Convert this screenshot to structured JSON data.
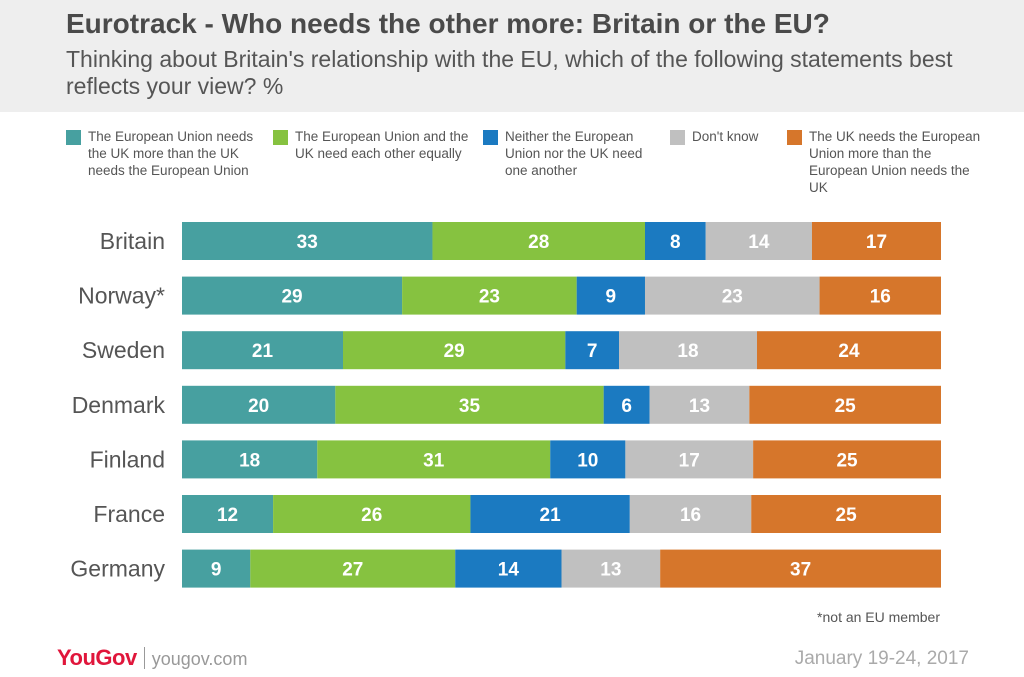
{
  "header": {
    "title": "Eurotrack - Who needs the other more: Britain or the EU?",
    "subtitle": "Thinking about Britain's relationship with the EU, which of the following statements best reflects your view? %"
  },
  "colors": {
    "series": [
      "#47a0a0",
      "#86c240",
      "#1b7ac1",
      "#c0c0c0",
      "#d6762b"
    ],
    "header_bg": "#eeeeee",
    "brand": "#e0163b"
  },
  "chart_data": {
    "type": "bar",
    "orientation": "horizontal",
    "stacked": true,
    "categories": [
      "Britain",
      "Norway*",
      "Sweden",
      "Denmark",
      "Finland",
      "France",
      "Germany"
    ],
    "series": [
      {
        "name": "The European Union needs the UK more than the UK needs the European Union",
        "values": [
          33,
          29,
          21,
          20,
          18,
          12,
          9
        ]
      },
      {
        "name": "The European Union and the UK need each other equally",
        "values": [
          28,
          23,
          29,
          35,
          31,
          26,
          27
        ]
      },
      {
        "name": "Neither the European Union nor the UK need one another",
        "values": [
          8,
          9,
          7,
          6,
          10,
          21,
          14
        ]
      },
      {
        "name": "Don't know",
        "values": [
          14,
          23,
          18,
          13,
          17,
          16,
          13
        ]
      },
      {
        "name": "The UK needs the European Union more than the European Union needs the UK",
        "values": [
          17,
          16,
          24,
          25,
          25,
          25,
          37
        ]
      }
    ],
    "legend_position": "top",
    "grid": false
  },
  "footer": {
    "footnote": "*not an EU member",
    "brand": "YouGov",
    "site": "yougov.com",
    "date": "January 19-24, 2017"
  }
}
